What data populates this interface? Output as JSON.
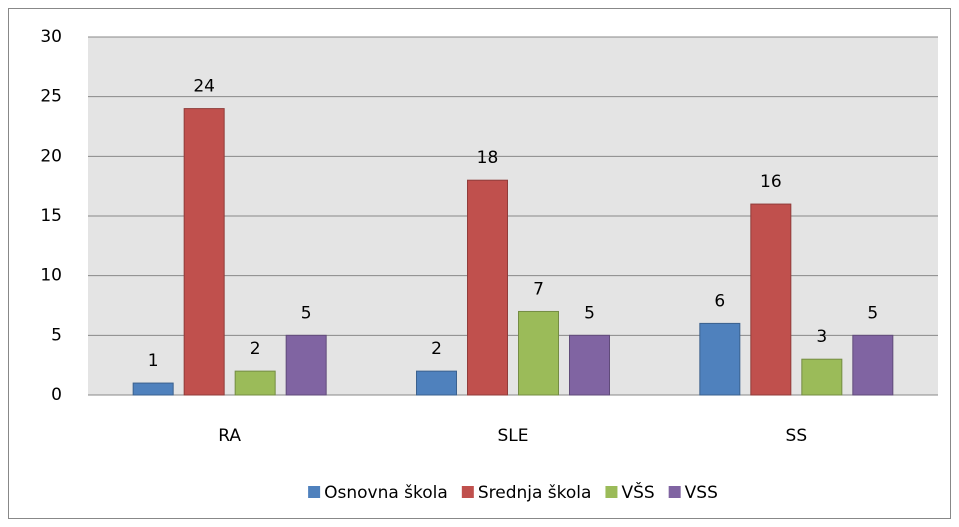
{
  "chart_data": {
    "type": "bar",
    "categories": [
      "RA",
      "SLE",
      "SS"
    ],
    "series": [
      {
        "name": "Osnovna škola",
        "color": "#4f81bd",
        "values": [
          1,
          2,
          6
        ]
      },
      {
        "name": "Srednja škola",
        "color": "#c0504d",
        "values": [
          24,
          18,
          16
        ]
      },
      {
        "name": "VŠS",
        "color": "#9bbb59",
        "values": [
          2,
          7,
          3
        ]
      },
      {
        "name": "VSS",
        "color": "#8064a2",
        "values": [
          5,
          5,
          5
        ]
      }
    ],
    "ylim": [
      0,
      30
    ],
    "yticks": [
      0,
      5,
      10,
      15,
      20,
      25,
      30
    ],
    "grid": true,
    "legend": "bottom"
  }
}
